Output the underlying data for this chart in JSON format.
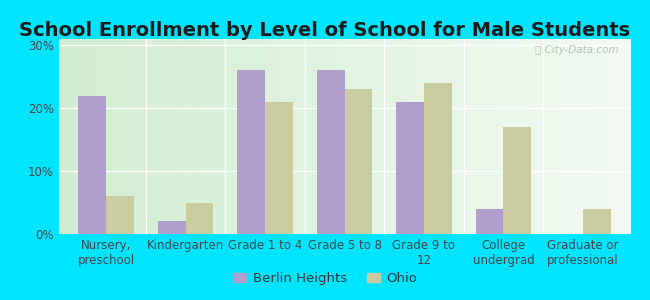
{
  "title": "School Enrollment by Level of School for Male Students",
  "categories": [
    "Nursery,\npreschool",
    "Kindergarten",
    "Grade 1 to 4",
    "Grade 5 to 8",
    "Grade 9 to\n12",
    "College\nundergrad",
    "Graduate or\nprofessional"
  ],
  "berlin_heights": [
    22,
    2,
    26,
    26,
    21,
    4,
    0
  ],
  "ohio": [
    6,
    5,
    21,
    23,
    24,
    17,
    4
  ],
  "berlin_color": "#b09fcc",
  "ohio_color": "#c8cc9f",
  "background_left": "#d4edda",
  "background_right": "#f0f8f0",
  "background_fig": "#00e5ff",
  "yticks": [
    0,
    10,
    20,
    30
  ],
  "ylim": [
    0,
    31
  ],
  "legend_labels": [
    "Berlin Heights",
    "Ohio"
  ],
  "title_fontsize": 14,
  "tick_fontsize": 8.5,
  "legend_fontsize": 9.5,
  "bar_width": 0.35
}
